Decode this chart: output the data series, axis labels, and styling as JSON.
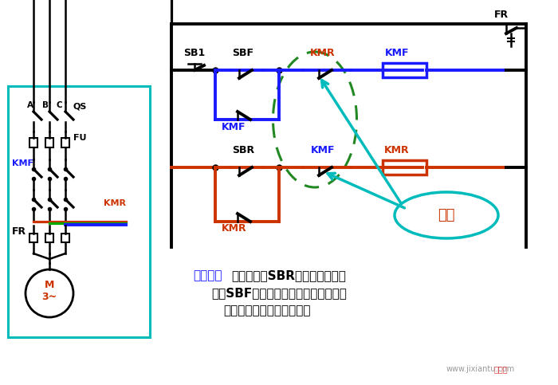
{
  "bg_color": "#ffffff",
  "text_line1_colored": "互锁作用",
  "text_line1_rest": "：正转时，SBR不起作用；反转",
  "text_line2": "时，SBF不起作用。从而避免两触发器",
  "text_line3": "同时工作造成主回路短路。",
  "interlock_label": "互锁",
  "SB1_label": "SB1",
  "SBF_label": "SBF",
  "SBR_label": "SBR",
  "FR_label": "FR",
  "FR_label2": "FR",
  "QS_label": "QS",
  "FU_label": "FU",
  "KMF_label": "KMF",
  "KMR_label": "KMR",
  "KMF_left_label": "KMF",
  "KMR_left_label": "KMR",
  "M_label": "M\n3~",
  "A_label": "A",
  "B_label": "B",
  "C_label": "C",
  "watermark": "www.jixiantu.com"
}
